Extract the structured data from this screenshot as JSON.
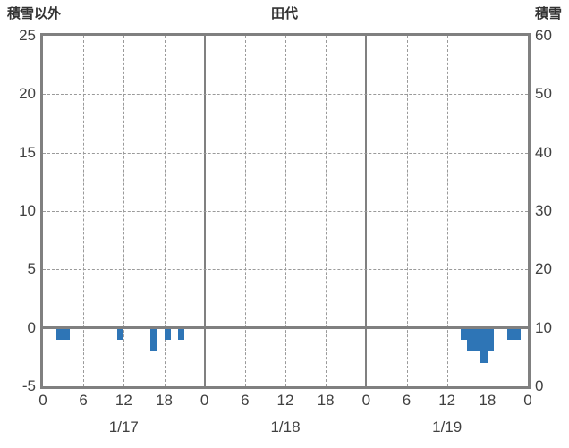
{
  "header": {
    "left_label": "積雪以外",
    "title": "田代",
    "right_label": "積雪"
  },
  "colors": {
    "bar": "#2E75B6",
    "frame": "#808080",
    "grid": "#9a9a9a",
    "text": "#404040"
  },
  "chart_data": {
    "type": "bar",
    "title": "田代",
    "left_axis": {
      "label": "積雪以外",
      "min": -5,
      "max": 25,
      "ticks": [
        25,
        20,
        15,
        10,
        5,
        0,
        -5
      ]
    },
    "right_axis": {
      "label": "積雪",
      "min": 0,
      "max": 60,
      "ticks": [
        60,
        50,
        40,
        30,
        20,
        10,
        0
      ]
    },
    "x_axis": {
      "days": [
        "1/17",
        "1/18",
        "1/19"
      ],
      "hour_ticks": [
        0,
        6,
        12,
        18
      ],
      "end_tick": 0,
      "total_hours": 72
    },
    "h_gridlines": [
      5,
      10,
      15,
      20
    ],
    "zero_line": 0,
    "grid": true,
    "legend": "none",
    "bars": [
      {
        "day": 0,
        "hour": 2,
        "span": 2,
        "value": -1
      },
      {
        "day": 0,
        "hour": 11,
        "span": 1,
        "value": -1
      },
      {
        "day": 0,
        "hour": 16,
        "span": 1,
        "value": -2
      },
      {
        "day": 0,
        "hour": 18,
        "span": 1,
        "value": -1
      },
      {
        "day": 0,
        "hour": 20,
        "span": 1,
        "value": -1
      },
      {
        "day": 2,
        "hour": 14,
        "span": 1,
        "value": -1
      },
      {
        "day": 2,
        "hour": 15,
        "span": 2,
        "value": -2
      },
      {
        "day": 2,
        "hour": 17,
        "span": 1,
        "value": -3
      },
      {
        "day": 2,
        "hour": 18,
        "span": 1,
        "value": -2
      },
      {
        "day": 2,
        "hour": 21,
        "span": 2,
        "value": -1
      }
    ]
  }
}
